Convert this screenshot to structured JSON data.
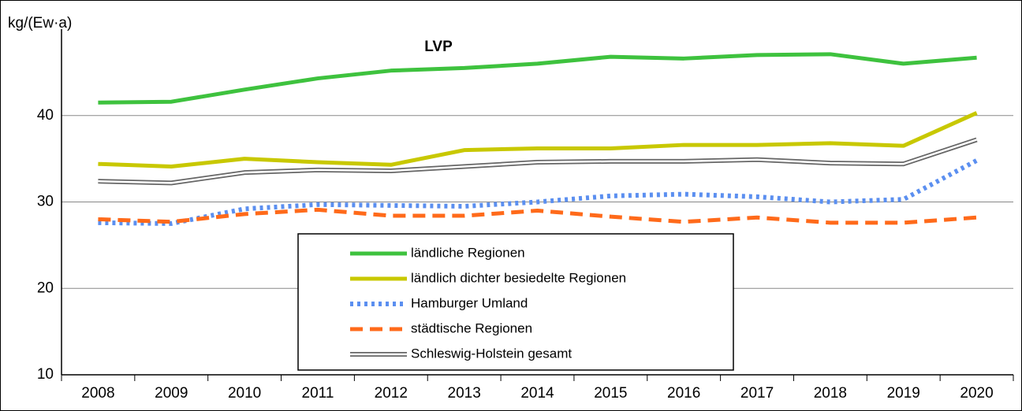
{
  "chart_data": {
    "type": "line",
    "title": "LVP",
    "y_label": "kg/(Ew·a)",
    "categories": [
      "2008",
      "2009",
      "2010",
      "2011",
      "2012",
      "2013",
      "2014",
      "2015",
      "2016",
      "2017",
      "2018",
      "2019",
      "2020"
    ],
    "series": [
      {
        "name": "ländliche Regionen",
        "color": "#3ec23e",
        "style": "solid",
        "values": [
          41.5,
          41.6,
          43,
          44.3,
          45.2,
          45.5,
          46,
          46.8,
          46.6,
          47,
          47.1,
          46,
          46.7
        ]
      },
      {
        "name": "ländlich dichter besiedelte Regionen",
        "color": "#c8c800",
        "style": "solid",
        "values": [
          34.4,
          34.1,
          35,
          34.6,
          34.3,
          36,
          36.2,
          36.2,
          36.6,
          36.6,
          36.8,
          36.5,
          40.3
        ]
      },
      {
        "name": "Hamburger Umland",
        "color": "#5b8ff0",
        "style": "dotted",
        "values": [
          27.6,
          27.5,
          29.2,
          29.7,
          29.6,
          29.5,
          30,
          30.7,
          30.9,
          30.6,
          30,
          30.3,
          34.8
        ]
      },
      {
        "name": "städtische Regionen",
        "color": "#ff6a1a",
        "style": "dashed",
        "values": [
          28,
          27.7,
          28.6,
          29.1,
          28.4,
          28.4,
          29,
          28.3,
          27.7,
          28.2,
          27.6,
          27.6,
          28.2
        ]
      },
      {
        "name": "Schleswig-Holstein gesamt",
        "color": "#666666",
        "style": "double",
        "values": [
          32.4,
          32.2,
          33.4,
          33.7,
          33.6,
          34.1,
          34.6,
          34.7,
          34.7,
          34.9,
          34.5,
          34.4,
          37.2
        ]
      }
    ],
    "ylim": [
      10,
      50
    ],
    "yticks": [
      10,
      20,
      30,
      40
    ],
    "grid": true
  }
}
